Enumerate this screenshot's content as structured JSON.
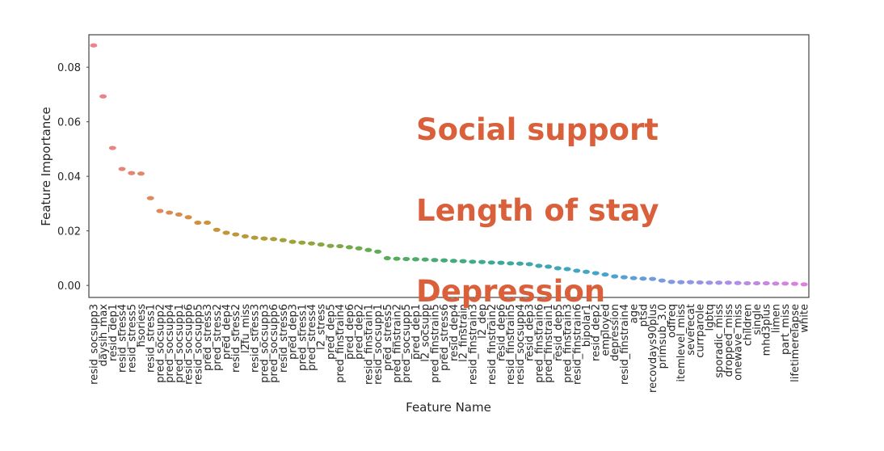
{
  "chart_data": {
    "type": "strip",
    "x_label": "Feature Name",
    "y_label": "Feature Importance",
    "categories": [
      "resid_socsupp3",
      "daysih_max",
      "resid_dep1",
      "resid_stress4",
      "resid_stress5",
      "hsoriess",
      "resid_stress1",
      "pred_socsupp2",
      "pred_socsupp4",
      "pred_socsupp1",
      "resid_socsupp6",
      "resid_socsupp5",
      "pred_stress3",
      "pred_stress2",
      "pred_dep4",
      "resid_stress2",
      "l2fu_miss",
      "resid_stress3",
      "pred_socsupp3",
      "pred_socsupp6",
      "resid_stress6",
      "pred_dep3",
      "pred_stress1",
      "pred_stress4",
      "l2_stress",
      "pred_dep5",
      "pred_finstrain4",
      "pred_dep6",
      "pred_dep2",
      "resid_finstrain1",
      "resid_socsupp1",
      "pred_stress5",
      "pred_finstrain2",
      "pred_socsupp5",
      "pred_dep1",
      "l2_socsupp",
      "pred_finstrain5",
      "pred_stress6",
      "resid_dep4",
      "l2_finstrain",
      "resid_finstrain3",
      "l2_dep",
      "resid_finstrain2",
      "resid_dep6",
      "resid_finstrain5",
      "resid_socsupp4",
      "resid_dep3",
      "pred_finstrain6",
      "pred_finstrain1",
      "resid_dep5",
      "pred_finstrain3",
      "resid_finstrain6",
      "bipolar1",
      "resid_dep2",
      "employed",
      "depression",
      "resid_finstrain4",
      "age",
      "ptsd",
      "recovdays90plus",
      "primsub_3.0",
      "odfreq",
      "itemlevel_miss",
      "severecat",
      "currparole",
      "lgbtq",
      "sporadic_miss",
      "dropped_miss",
      "onewave_miss",
      "children",
      "single",
      "mhd3plus",
      "limen",
      "part_miss",
      "lifetimerelapse",
      "white"
    ],
    "values": [
      0.088,
      0.0693,
      0.0504,
      0.0427,
      0.0412,
      0.041,
      0.032,
      0.0273,
      0.0267,
      0.026,
      0.025,
      0.023,
      0.023,
      0.0204,
      0.0193,
      0.0187,
      0.018,
      0.0175,
      0.0172,
      0.017,
      0.0166,
      0.016,
      0.0157,
      0.0154,
      0.015,
      0.0145,
      0.0144,
      0.014,
      0.0136,
      0.013,
      0.0124,
      0.01,
      0.0098,
      0.0097,
      0.0096,
      0.0095,
      0.0093,
      0.0092,
      0.009,
      0.0089,
      0.0087,
      0.0086,
      0.0084,
      0.0083,
      0.0081,
      0.008,
      0.0078,
      0.0072,
      0.0069,
      0.0063,
      0.006,
      0.0054,
      0.005,
      0.0045,
      0.004,
      0.0033,
      0.003,
      0.0027,
      0.0025,
      0.0024,
      0.0018,
      0.0013,
      0.0012,
      0.0012,
      0.0011,
      0.001,
      0.001,
      0.001,
      0.0009,
      0.0008,
      0.0008,
      0.0008,
      0.0007,
      0.0007,
      0.0006,
      0.0004
    ],
    "colors": [
      "#e8838f",
      "#d38f3d",
      "#9ea43a",
      "#52ad5c",
      "#3aa99b",
      "#45a5cc",
      "#9a93ea",
      "#e080dc"
    ],
    "ylim": [
      -0.0044,
      0.0919
    ],
    "yticks": [
      {
        "value": 0,
        "label": "0.00"
      },
      {
        "value": 0.02,
        "label": "0.02"
      },
      {
        "value": 0.04,
        "label": "0.04"
      },
      {
        "value": 0.06,
        "label": "0.06"
      },
      {
        "value": 0.08,
        "label": "0.08"
      }
    ],
    "annotations": [
      "Social support",
      "Length of stay",
      "Depression"
    ],
    "annotation_color": "#d9603b"
  }
}
